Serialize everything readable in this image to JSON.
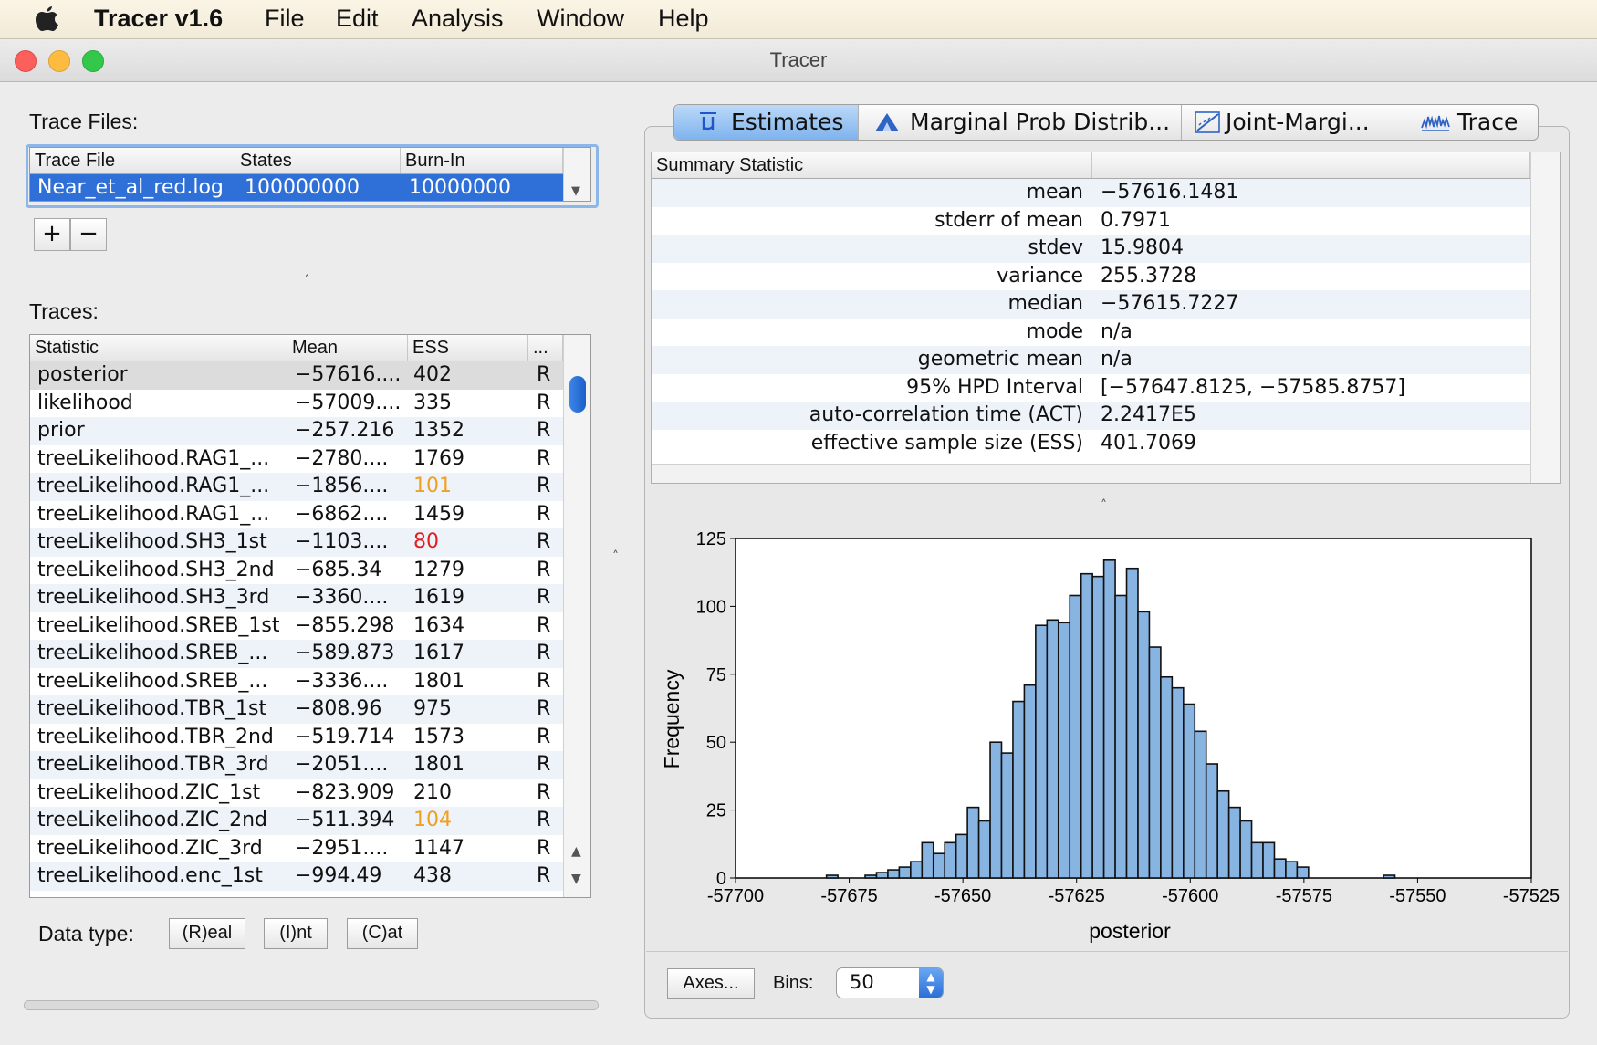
{
  "menubar": {
    "app_name": "Tracer v1.6",
    "items": [
      "File",
      "Edit",
      "Analysis",
      "Window",
      "Help"
    ]
  },
  "window": {
    "title": "Tracer"
  },
  "trace_files": {
    "label": "Trace Files:",
    "columns": [
      "Trace File",
      "States",
      "Burn-In"
    ],
    "rows": [
      [
        "Near_et_al_red.log",
        "100000000",
        "10000000"
      ]
    ],
    "add_label": "+",
    "remove_label": "−"
  },
  "traces": {
    "label": "Traces:",
    "columns": [
      "Statistic",
      "Mean",
      "ESS",
      "..."
    ],
    "rows": [
      {
        "name": "posterior",
        "mean": "−57616....",
        "ess": "402",
        "type": "R",
        "ess_color": "#111111"
      },
      {
        "name": "likelihood",
        "mean": "−57009....",
        "ess": "335",
        "type": "R",
        "ess_color": "#111111"
      },
      {
        "name": "prior",
        "mean": "−257.216",
        "ess": "1352",
        "type": "R",
        "ess_color": "#111111"
      },
      {
        "name": "treeLikelihood.RAG1_...",
        "mean": "−2780....",
        "ess": "1769",
        "type": "R",
        "ess_color": "#111111"
      },
      {
        "name": "treeLikelihood.RAG1_...",
        "mean": "−1856....",
        "ess": "101",
        "type": "R",
        "ess_color": "#f0a020"
      },
      {
        "name": "treeLikelihood.RAG1_...",
        "mean": "−6862....",
        "ess": "1459",
        "type": "R",
        "ess_color": "#111111"
      },
      {
        "name": "treeLikelihood.SH3_1st",
        "mean": "−1103....",
        "ess": "80",
        "type": "R",
        "ess_color": "#e02020"
      },
      {
        "name": "treeLikelihood.SH3_2nd",
        "mean": "−685.34",
        "ess": "1279",
        "type": "R",
        "ess_color": "#111111"
      },
      {
        "name": "treeLikelihood.SH3_3rd",
        "mean": "−3360....",
        "ess": "1619",
        "type": "R",
        "ess_color": "#111111"
      },
      {
        "name": "treeLikelihood.SREB_1st",
        "mean": "−855.298",
        "ess": "1634",
        "type": "R",
        "ess_color": "#111111"
      },
      {
        "name": "treeLikelihood.SREB_...",
        "mean": "−589.873",
        "ess": "1617",
        "type": "R",
        "ess_color": "#111111"
      },
      {
        "name": "treeLikelihood.SREB_...",
        "mean": "−3336....",
        "ess": "1801",
        "type": "R",
        "ess_color": "#111111"
      },
      {
        "name": "treeLikelihood.TBR_1st",
        "mean": "−808.96",
        "ess": "975",
        "type": "R",
        "ess_color": "#111111"
      },
      {
        "name": "treeLikelihood.TBR_2nd",
        "mean": "−519.714",
        "ess": "1573",
        "type": "R",
        "ess_color": "#111111"
      },
      {
        "name": "treeLikelihood.TBR_3rd",
        "mean": "−2051....",
        "ess": "1801",
        "type": "R",
        "ess_color": "#111111"
      },
      {
        "name": "treeLikelihood.ZIC_1st",
        "mean": "−823.909",
        "ess": "210",
        "type": "R",
        "ess_color": "#111111"
      },
      {
        "name": "treeLikelihood.ZIC_2nd",
        "mean": "−511.394",
        "ess": "104",
        "type": "R",
        "ess_color": "#f0a020"
      },
      {
        "name": "treeLikelihood.ZIC_3rd",
        "mean": "−2951....",
        "ess": "1147",
        "type": "R",
        "ess_color": "#111111"
      },
      {
        "name": "treeLikelihood.enc_1st",
        "mean": "−994.49",
        "ess": "438",
        "type": "R",
        "ess_color": "#111111"
      }
    ]
  },
  "data_type": {
    "label": "Data type:",
    "buttons": [
      "(R)eal",
      "(I)nt",
      "(C)at"
    ]
  },
  "tabs": [
    "Estimates",
    "Marginal Prob Distrib...",
    "Joint-Margi...",
    "Trace"
  ],
  "summary": {
    "column": "Summary Statistic",
    "rows": [
      {
        "label": "mean",
        "value": "−57616.1481"
      },
      {
        "label": "stderr of mean",
        "value": "0.7971"
      },
      {
        "label": "stdev",
        "value": "15.9804"
      },
      {
        "label": "variance",
        "value": "255.3728"
      },
      {
        "label": "median",
        "value": "−57615.7227"
      },
      {
        "label": "mode",
        "value": "n/a"
      },
      {
        "label": "geometric mean",
        "value": "n/a"
      },
      {
        "label": "95% HPD Interval",
        "value": "[−57647.8125, −57585.8757]"
      },
      {
        "label": "auto-correlation time (ACT)",
        "value": "2.2417E5"
      },
      {
        "label": "effective sample size (ESS)",
        "value": "401.7069"
      }
    ]
  },
  "chart_data": {
    "type": "bar",
    "title": "",
    "xlabel": "posterior",
    "ylabel": "Frequency",
    "xlim": [
      -57700,
      -57525
    ],
    "ylim": [
      0,
      125
    ],
    "xticks": [
      "-57700",
      "-57675",
      "-57650",
      "-57625",
      "-57600",
      "-57575",
      "-57550",
      "-57525"
    ],
    "yticks": [
      "0",
      "25",
      "50",
      "75",
      "100",
      "125"
    ],
    "bar_color": "#88b4e2",
    "bin_width": 2.5,
    "bin_starts": [
      -57680,
      -57671.5,
      -57669,
      -57666.5,
      -57664,
      -57661.5,
      -57659,
      -57656.5,
      -57654,
      -57651.5,
      -57649,
      -57646.5,
      -57644,
      -57641.5,
      -57639,
      -57636.5,
      -57634,
      -57631.5,
      -57629,
      -57626.5,
      -57624,
      -57621.5,
      -57619,
      -57616.5,
      -57614,
      -57611.5,
      -57609,
      -57606.5,
      -57604,
      -57601.5,
      -57599,
      -57596.5,
      -57594,
      -57591.5,
      -57589,
      -57586.5,
      -57584,
      -57581.5,
      -57579,
      -57576.5,
      -57557.5
    ],
    "values": [
      1,
      1,
      2,
      3,
      4,
      6,
      13,
      9,
      13,
      16,
      26,
      21,
      50,
      46,
      65,
      71,
      93,
      95,
      94,
      104,
      112,
      111,
      117,
      104,
      114,
      98,
      85,
      74,
      70,
      64,
      54,
      42,
      32,
      26,
      21,
      13,
      13,
      7,
      6,
      4,
      1
    ]
  },
  "controls": {
    "axes_label": "Axes...",
    "bins_label": "Bins:",
    "bins_value": "50"
  }
}
